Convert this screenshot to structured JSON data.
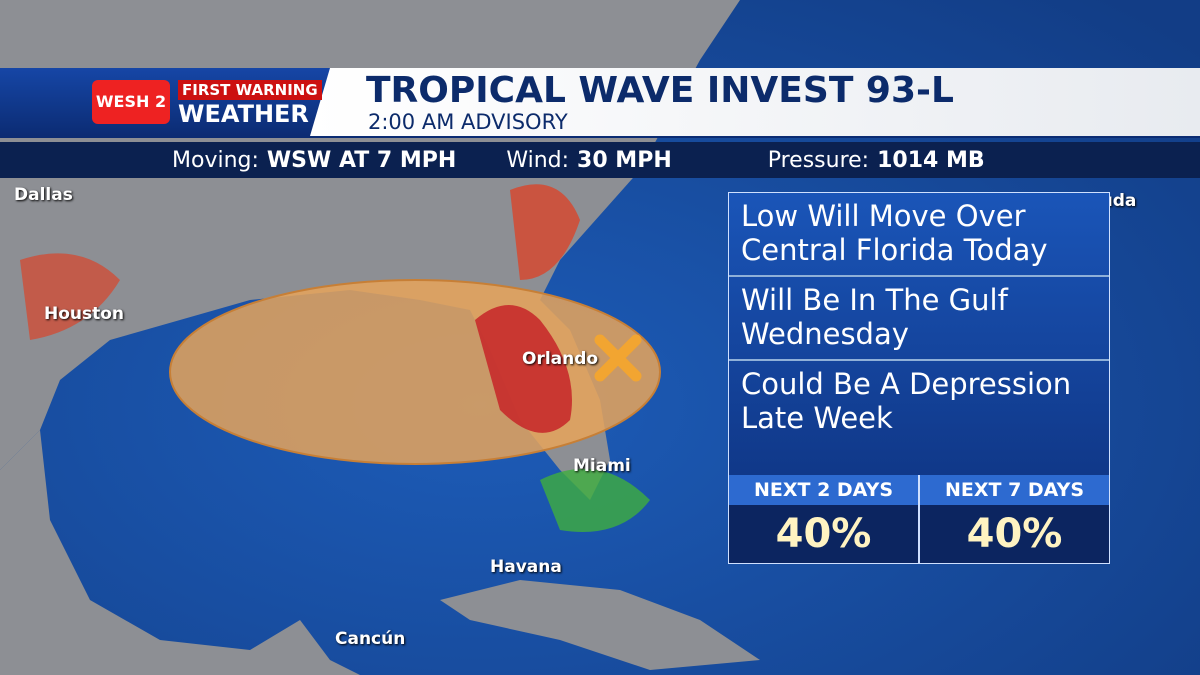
{
  "brand": {
    "logo": "WESH 2",
    "line1": "FIRST WARNING",
    "line2": "WEATHER"
  },
  "header": {
    "title": "TROPICAL WAVE INVEST 93-L",
    "subtitle": "2:00 AM ADVISORY"
  },
  "stats": [
    {
      "label": "Moving:",
      "value": "WSW AT 7 MPH"
    },
    {
      "label": "Wind:",
      "value": "30 MPH"
    },
    {
      "label": "Pressure:",
      "value": "1014 MB"
    }
  ],
  "cities": [
    "Dallas",
    "Houston",
    "Orlando",
    "Miami",
    "Havana",
    "Cancún",
    "Bermuda"
  ],
  "panel": {
    "notes": [
      "Low Will Move Over Central Florida Today",
      "Will Be In The Gulf Wednesday",
      "Could Be A Depression Late Week"
    ],
    "odds": [
      {
        "label": "NEXT 2 DAYS",
        "value": "40%"
      },
      {
        "label": "NEXT 7 DAYS",
        "value": "40%"
      }
    ]
  }
}
